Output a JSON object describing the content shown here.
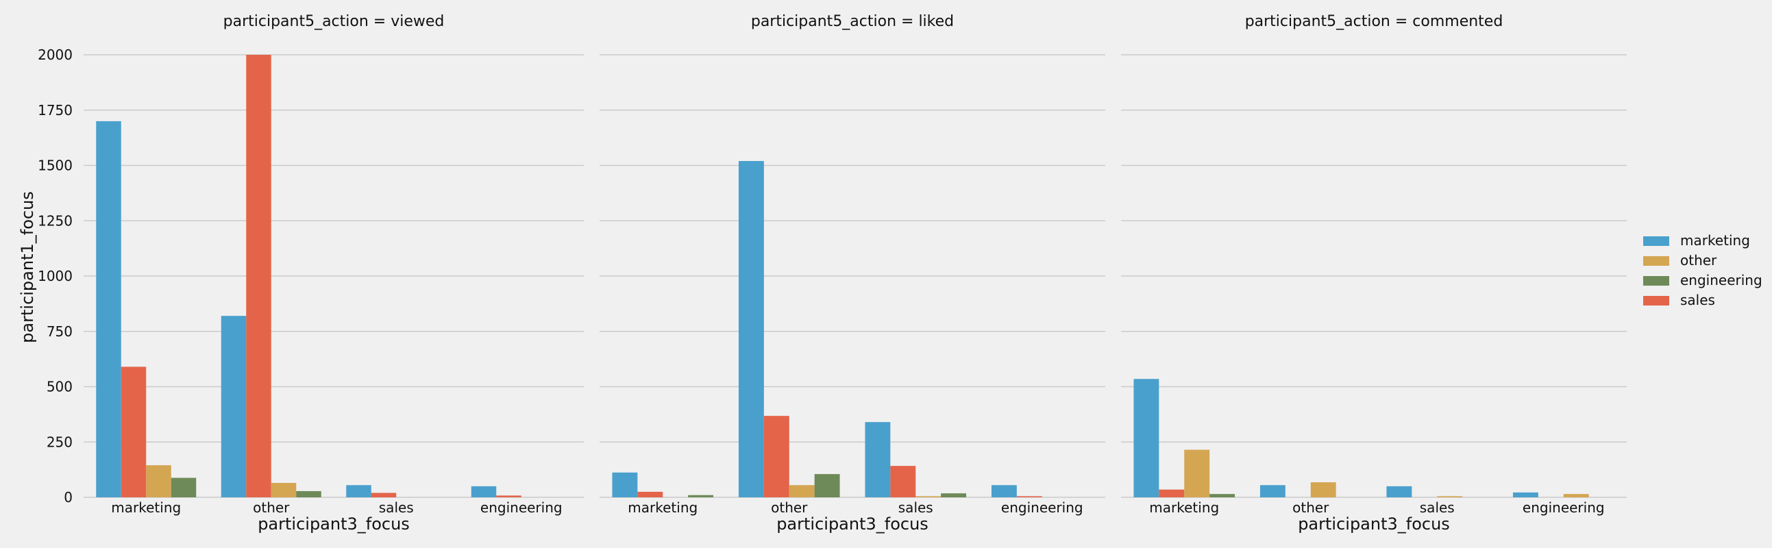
{
  "chart_data": {
    "type": "bar",
    "ylabel": "participant1_focus",
    "xlabel": "participant3_focus",
    "ylim": [
      0,
      2000
    ],
    "yticks": [
      0,
      250,
      500,
      750,
      1000,
      1250,
      1500,
      1750,
      2000
    ],
    "categories": [
      "marketing",
      "other",
      "sales",
      "engineering"
    ],
    "hue_order": [
      "marketing",
      "sales",
      "other",
      "engineering"
    ],
    "legend": {
      "placement": "right",
      "entries": [
        {
          "label": "marketing",
          "color": "#4aa0cd"
        },
        {
          "label": "other",
          "color": "#d4a652"
        },
        {
          "label": "engineering",
          "color": "#6e8a58"
        },
        {
          "label": "sales",
          "color": "#e4644a"
        }
      ]
    },
    "grid": true,
    "panels": [
      {
        "title": "participant5_action = viewed",
        "series": [
          {
            "name": "marketing",
            "values": [
              1700,
              820,
              55,
              50
            ]
          },
          {
            "name": "sales",
            "values": [
              590,
              2000,
              20,
              8
            ]
          },
          {
            "name": "other",
            "values": [
              145,
              65,
              0,
              0
            ]
          },
          {
            "name": "engineering",
            "values": [
              88,
              28,
              0,
              0
            ]
          }
        ]
      },
      {
        "title": "participant5_action = liked",
        "series": [
          {
            "name": "marketing",
            "values": [
              112,
              1520,
              340,
              55
            ]
          },
          {
            "name": "sales",
            "values": [
              25,
              368,
              142,
              5
            ]
          },
          {
            "name": "other",
            "values": [
              0,
              55,
              5,
              0
            ]
          },
          {
            "name": "engineering",
            "values": [
              10,
              105,
              18,
              0
            ]
          }
        ]
      },
      {
        "title": "participant5_action = commented",
        "series": [
          {
            "name": "marketing",
            "values": [
              535,
              55,
              50,
              22
            ]
          },
          {
            "name": "sales",
            "values": [
              35,
              0,
              0,
              0
            ]
          },
          {
            "name": "other",
            "values": [
              215,
              68,
              5,
              15
            ]
          },
          {
            "name": "engineering",
            "values": [
              15,
              0,
              0,
              0
            ]
          }
        ]
      }
    ]
  }
}
